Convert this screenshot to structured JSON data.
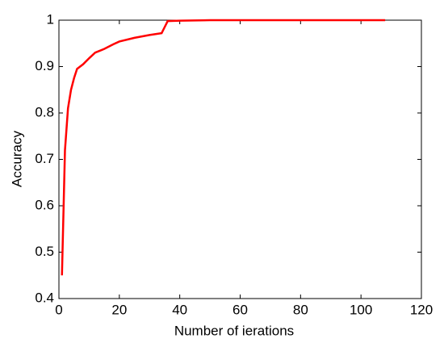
{
  "chart_data": {
    "type": "line",
    "x_label": "Number of ierations",
    "y_label": "Accuracy",
    "x": [
      1,
      2,
      3,
      4,
      5,
      6,
      8,
      10,
      12,
      15,
      18,
      20,
      25,
      30,
      34,
      35,
      36,
      40,
      50,
      60,
      70,
      80,
      90,
      100,
      108
    ],
    "series": [
      {
        "color": "#ff0000",
        "values": [
          0.45,
          0.72,
          0.81,
          0.85,
          0.875,
          0.895,
          0.905,
          0.918,
          0.93,
          0.938,
          0.948,
          0.954,
          0.962,
          0.968,
          0.972,
          0.985,
          0.998,
          0.999,
          1,
          1,
          1,
          1,
          1,
          1,
          1
        ]
      }
    ],
    "xlim": [
      0,
      120
    ],
    "xticks": [
      0,
      20,
      40,
      60,
      80,
      100,
      120
    ],
    "ylim": [
      0.4,
      1
    ],
    "yticks": [
      0.4,
      0.5,
      0.6,
      0.7,
      0.8,
      0.9,
      1
    ]
  }
}
